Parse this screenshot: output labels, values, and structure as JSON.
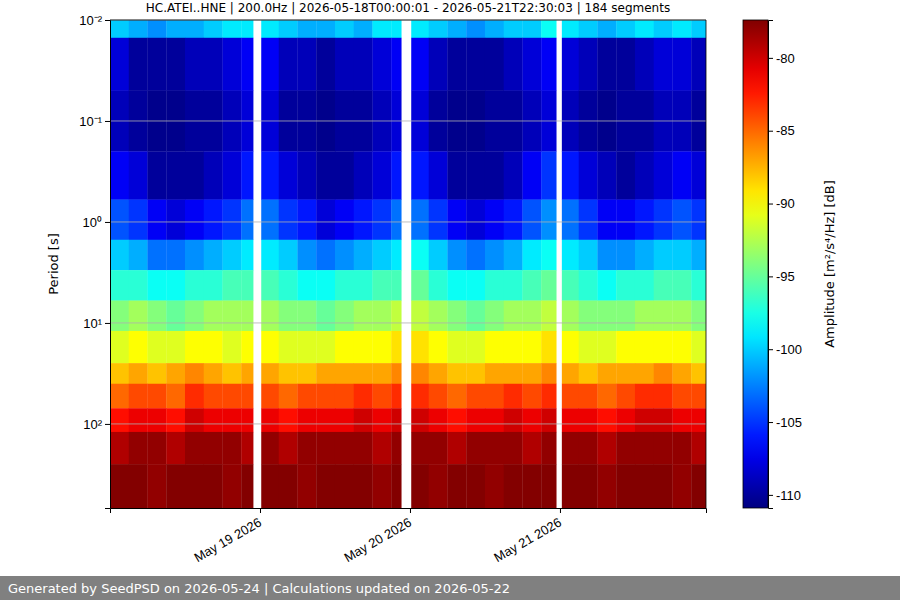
{
  "chart_data": {
    "type": "heatmap",
    "title": "HC.ATEI..HNE | 200.0Hz | 2026-05-18T00:00:01 - 2026-05-21T22:30:03 | 184 segments",
    "y_label": "Period [s]",
    "colorbar_label": "Amplitude [m²/s⁴/Hz] [dB]",
    "footer": "Generated by SeedPSD on 2026-05-24 | Calculations updated on 2026-05-22",
    "log": "y",
    "grid": true,
    "xlim": [
      "2026-05-18T00:00",
      "2026-05-21T23:22"
    ],
    "xticks": [
      {
        "value": "2026-05-19T00:00",
        "label": "May 19 2026"
      },
      {
        "value": "2026-05-20T00:00",
        "label": "May 20 2026"
      },
      {
        "value": "2026-05-21T00:00",
        "label": "May 21 2026"
      }
    ],
    "ylim": [
      0.01,
      680
    ],
    "yticks": [
      {
        "value": 0.01,
        "label": "10⁻²"
      },
      {
        "value": 0.1,
        "label": "10⁻¹"
      },
      {
        "value": 1,
        "label": "10⁰"
      },
      {
        "value": 10,
        "label": "10¹"
      },
      {
        "value": 100,
        "label": "10²"
      }
    ],
    "colorbar_lim": [
      -110.9,
      -77.4
    ],
    "colorbar_ticks": [
      -110,
      -105,
      -100,
      -95,
      -90,
      -85,
      -80
    ],
    "x_bins": [
      "2026-05-18T00:00",
      "2026-05-18T03:00",
      "2026-05-18T06:00",
      "2026-05-18T09:00",
      "2026-05-18T12:00",
      "2026-05-18T15:00",
      "2026-05-18T18:00",
      "2026-05-18T21:00",
      "2026-05-18T22:54",
      "2026-05-19T00:12",
      "2026-05-19T03:00",
      "2026-05-19T06:00",
      "2026-05-19T09:00",
      "2026-05-19T12:00",
      "2026-05-19T15:00",
      "2026-05-19T18:00",
      "2026-05-19T21:00",
      "2026-05-19T22:36",
      "2026-05-20T00:12",
      "2026-05-20T03:00",
      "2026-05-20T06:00",
      "2026-05-20T09:00",
      "2026-05-20T12:00",
      "2026-05-20T15:00",
      "2026-05-20T18:00",
      "2026-05-20T21:00",
      "2026-05-20T23:24",
      "2026-05-21T00:18",
      "2026-05-21T03:00",
      "2026-05-21T06:00",
      "2026-05-21T09:00",
      "2026-05-21T12:00",
      "2026-05-21T15:00",
      "2026-05-21T18:00",
      "2026-05-21T21:00",
      "2026-05-21T23:22"
    ],
    "y_bins": [
      0.01,
      0.015,
      0.05,
      0.2,
      0.6,
      1.5,
      3,
      6,
      12,
      25,
      40,
      70,
      120,
      250,
      680
    ],
    "z": [
      [
        -100,
        -101,
        -102,
        -101,
        -101,
        -100,
        -99,
        -99,
        null,
        -99,
        -100,
        -101,
        -101,
        -100,
        -101,
        -99,
        -99,
        null,
        -99,
        -100,
        -101,
        -102,
        -101,
        -100,
        -100,
        -98,
        null,
        -99,
        -100,
        -101,
        -100,
        -99,
        -100,
        -99,
        -100
      ],
      [
        -108,
        -110,
        -110,
        -110,
        -109,
        -109,
        -108,
        -107,
        null,
        -107,
        -109,
        -109,
        -110,
        -109,
        -109,
        -108,
        -107,
        null,
        -107,
        -109,
        -110,
        -110,
        -110,
        -109,
        -108,
        -107,
        null,
        -108,
        -109,
        -110,
        -110,
        -109,
        -108,
        -108,
        -109
      ],
      [
        -109,
        -110,
        -110.5,
        -110.5,
        -110,
        -110,
        -109,
        -108,
        null,
        -108,
        -110,
        -110,
        -110.5,
        -110,
        -110,
        -109,
        -108,
        null,
        -108,
        -110,
        -110.5,
        -110.5,
        -110,
        -110,
        -109,
        -108,
        null,
        -109,
        -110,
        -110.5,
        -110,
        -110,
        -109,
        -109,
        -110
      ],
      [
        -107,
        -108,
        -110,
        -110,
        -110,
        -109,
        -108,
        -106,
        null,
        -106,
        -108,
        -109,
        -110,
        -110,
        -109,
        -108,
        -106,
        null,
        -106,
        -108,
        -110,
        -110,
        -110,
        -109,
        -107,
        -105,
        null,
        -106,
        -108,
        -109,
        -110,
        -109,
        -108,
        -107,
        -108
      ],
      [
        -104,
        -105,
        -107,
        -108,
        -107,
        -106,
        -105,
        -103,
        null,
        -103,
        -105,
        -106,
        -108,
        -107,
        -106,
        -105,
        -103,
        null,
        -103,
        -105,
        -107,
        -108,
        -107,
        -106,
        -104,
        -102,
        null,
        -103,
        -105,
        -107,
        -107,
        -106,
        -105,
        -104,
        -105
      ],
      [
        -100,
        -101,
        -103,
        -103,
        -102,
        -101,
        -100,
        -99,
        null,
        -99,
        -100,
        -102,
        -103,
        -102,
        -101,
        -100,
        -99,
        null,
        -98,
        -100,
        -102,
        -103,
        -102,
        -101,
        -99,
        -98,
        null,
        -99,
        -100,
        -102,
        -102,
        -101,
        -100,
        -100,
        -101
      ],
      [
        -97,
        -97,
        -98,
        -98,
        -97,
        -97,
        -96,
        -96,
        null,
        -96,
        -97,
        -98,
        -98,
        -97,
        -97,
        -96,
        -96,
        null,
        -95,
        -97,
        -98,
        -98,
        -97,
        -97,
        -96,
        -95,
        null,
        -96,
        -97,
        -98,
        -97,
        -97,
        -96,
        -96,
        -97
      ],
      [
        -94,
        -93,
        -94,
        -95,
        -94,
        -93,
        -93,
        -93,
        null,
        -93,
        -94,
        -94,
        -95,
        -94,
        -93,
        -93,
        -92,
        null,
        -92,
        -93,
        -94,
        -95,
        -94,
        -93,
        -93,
        -92,
        null,
        -93,
        -94,
        -94,
        -94,
        -93,
        -93,
        -93,
        -94
      ],
      [
        -91,
        -90,
        -91,
        -91,
        -90,
        -90,
        -91,
        -90,
        null,
        -90,
        -91,
        -91,
        -91,
        -90,
        -90,
        -90,
        -89,
        null,
        -89,
        -90,
        -91,
        -91,
        -90,
        -90,
        -90,
        -89,
        null,
        -90,
        -91,
        -91,
        -90,
        -90,
        -90,
        -90,
        -91
      ],
      [
        -88,
        -87,
        -88,
        -87,
        -86,
        -87,
        -88,
        -87,
        null,
        -87,
        -88,
        -88,
        -87,
        -87,
        -87,
        -87,
        -86,
        null,
        -86,
        -87,
        -88,
        -88,
        -87,
        -87,
        -87,
        -86,
        null,
        -87,
        -88,
        -87,
        -87,
        -87,
        -86,
        -87,
        -88
      ],
      [
        -85,
        -84,
        -84,
        -85,
        -83,
        -84,
        -84,
        -84,
        null,
        -84,
        -85,
        -84,
        -84,
        -84,
        -83,
        -84,
        -83,
        null,
        -83,
        -84,
        -85,
        -84,
        -84,
        -83,
        -84,
        -83,
        null,
        -84,
        -84,
        -85,
        -84,
        -83,
        -83,
        -84,
        -84
      ],
      [
        -82,
        -81,
        -81,
        -82,
        -80,
        -81,
        -81,
        -81,
        null,
        -81,
        -82,
        -81,
        -81,
        -81,
        -80,
        -81,
        -80,
        null,
        -80,
        -81,
        -82,
        -81,
        -81,
        -80,
        -81,
        -80,
        null,
        -81,
        -81,
        -82,
        -81,
        -80,
        -80,
        -81,
        -81
      ],
      [
        -79,
        -78,
        -78,
        -79,
        -78,
        -78,
        -78,
        -79,
        null,
        -78,
        -79,
        -78,
        -78,
        -78,
        -78,
        -79,
        -78,
        null,
        -78,
        -78,
        -79,
        -78,
        -78,
        -78,
        -79,
        -78,
        null,
        -78,
        -78,
        -79,
        -78,
        -78,
        -78,
        -78,
        -79
      ],
      [
        -77.5,
        -77.5,
        -78,
        -77.5,
        -77.5,
        -77.5,
        -78,
        -77.5,
        null,
        -77.5,
        -77.5,
        -78,
        -77.5,
        -77.5,
        -77.5,
        -78,
        -77.5,
        null,
        -77.5,
        -78,
        -77.5,
        -77.5,
        -78,
        -77.5,
        -77.5,
        -77.5,
        null,
        -77.5,
        -77.5,
        -78,
        -77.5,
        -77.5,
        -77.5,
        -78,
        -77.5
      ]
    ]
  }
}
